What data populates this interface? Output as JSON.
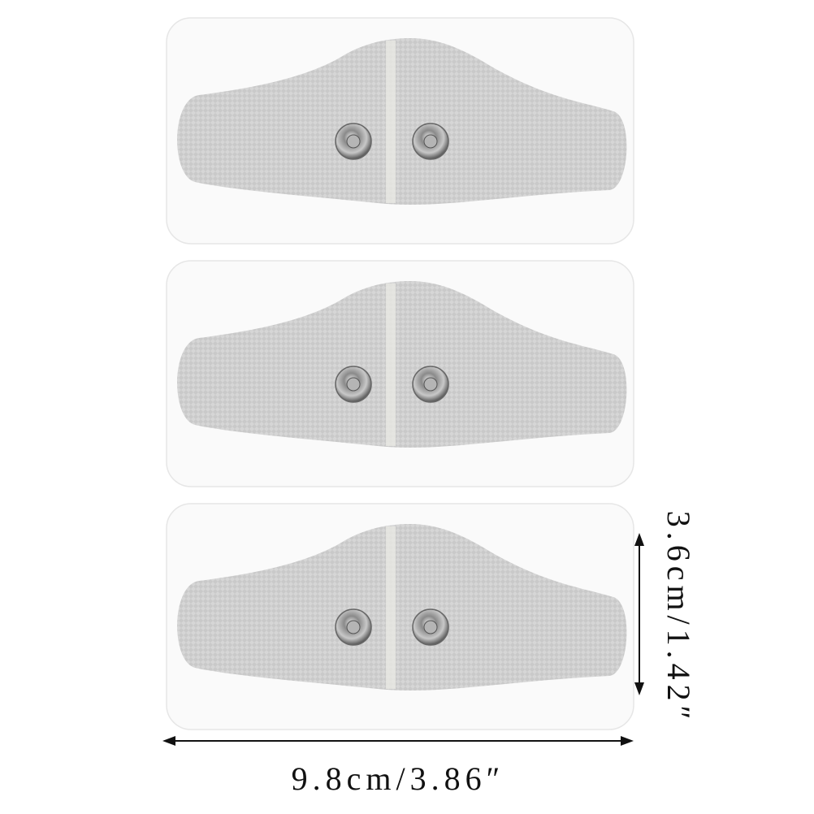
{
  "dimensions": {
    "width": "9.8cm/3.86″",
    "height": "3.6cm/1.42″"
  }
}
